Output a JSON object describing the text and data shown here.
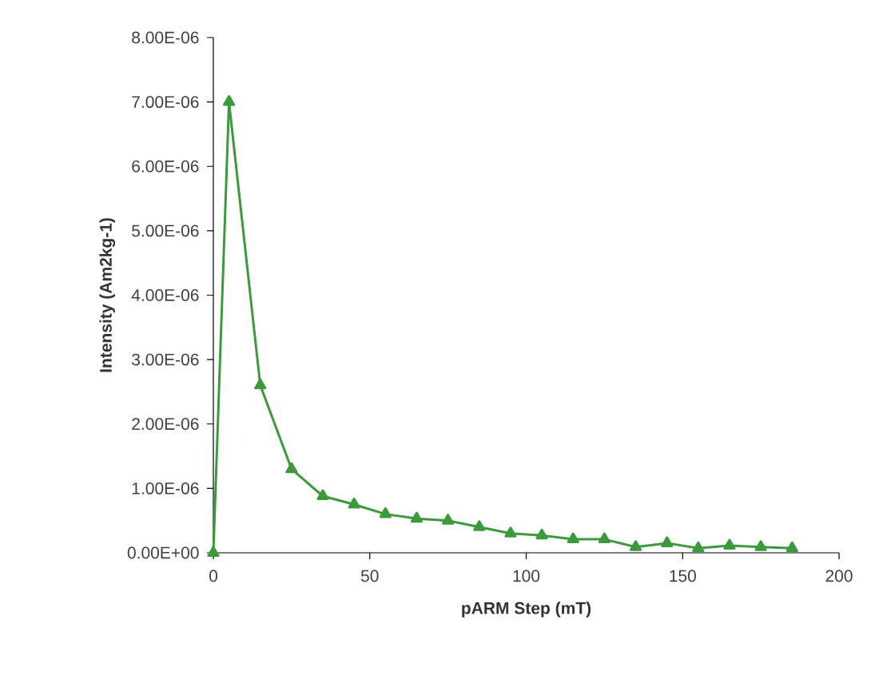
{
  "chart_data": {
    "type": "line",
    "xlabel": "pARM Step (mT)",
    "ylabel": "Intensity (Am2kg-1)",
    "x": [
      0,
      5,
      15,
      25,
      35,
      45,
      55,
      65,
      75,
      85,
      95,
      105,
      115,
      125,
      135,
      145,
      155,
      165,
      175,
      185
    ],
    "series": [
      {
        "color": "#3c9a3c",
        "values": [
          0,
          7e-06,
          2.6e-06,
          1.3e-06,
          8.8e-07,
          7.5e-07,
          6e-07,
          5.3e-07,
          5e-07,
          4e-07,
          3e-07,
          2.7e-07,
          2.1e-07,
          2.1e-07,
          9e-08,
          1.5e-07,
          7e-08,
          1.1e-07,
          9e-08,
          7e-08
        ]
      }
    ],
    "xlim": [
      0,
      200
    ],
    "xticks": [
      0,
      50,
      100,
      150,
      200
    ],
    "ylim": [
      0,
      8e-06
    ],
    "yticks": [
      {
        "value": 0,
        "label": "0.00E+00"
      },
      {
        "value": 1e-06,
        "label": "1.00E-06"
      },
      {
        "value": 2e-06,
        "label": "2.00E-06"
      },
      {
        "value": 3e-06,
        "label": "3.00E-06"
      },
      {
        "value": 4e-06,
        "label": "4.00E-06"
      },
      {
        "value": 5e-06,
        "label": "5.00E-06"
      },
      {
        "value": 6e-06,
        "label": "6.00E-06"
      },
      {
        "value": 7e-06,
        "label": "7.00E-06"
      },
      {
        "value": 8e-06,
        "label": "8.00E-06"
      }
    ],
    "marker": "triangle",
    "line_style": "solid"
  }
}
